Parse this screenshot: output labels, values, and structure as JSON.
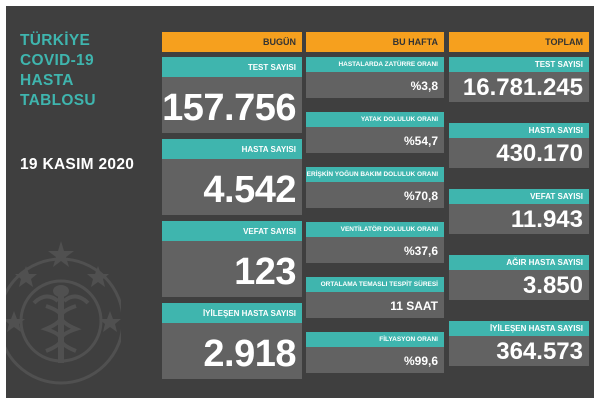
{
  "side": {
    "title_lines": [
      "TÜRKİYE",
      "COVID-19",
      "HASTA",
      "TABLOSU"
    ],
    "date": "19 KASIM 2020"
  },
  "headers": {
    "bugun": "BUGÜN",
    "bu_hafta": "BU HAFTA",
    "toplam": "TOPLAM"
  },
  "bugun": [
    {
      "label": "TEST SAYISI",
      "value": "157.756"
    },
    {
      "label": "HASTA SAYISI",
      "value": "4.542"
    },
    {
      "label": "VEFAT SAYISI",
      "value": "123"
    },
    {
      "label": "İYİLEŞEN HASTA SAYISI",
      "value": "2.918"
    }
  ],
  "bu_hafta": [
    {
      "label": "HASTALARDA ZATÜRRE ORANI",
      "value": "%3,8"
    },
    {
      "label": "YATAK DOLULUK ORANI",
      "value": "%54,7"
    },
    {
      "label": "ERİŞKİN YOĞUN BAKIM DOLULUK ORANI",
      "value": "%70,8"
    },
    {
      "label": "VENTİLATÖR DOLULUK ORANI",
      "value": "%37,6"
    },
    {
      "label": "ORTALAMA TEMASLI TESPİT SÜRESİ",
      "value": "11 SAAT"
    },
    {
      "label": "FİLYASYON ORANI",
      "value": "%99,6"
    }
  ],
  "toplam": [
    {
      "label": "TEST SAYISI",
      "value": "16.781.245"
    },
    {
      "label": "HASTA SAYISI",
      "value": "430.170"
    },
    {
      "label": "VEFAT SAYISI",
      "value": "11.943"
    },
    {
      "label": "AĞIR HASTA SAYISI",
      "value": "3.850"
    },
    {
      "label": "İYİLEŞEN HASTA SAYISI",
      "value": "364.573"
    }
  ],
  "colors": {
    "background": "#3f3f3f",
    "header": "#f6a01e",
    "label": "#3fb5ae",
    "value_box": "#626262",
    "title_text": "#3fb5ae"
  },
  "icons": [
    "health-ministry-emblem-icon"
  ]
}
